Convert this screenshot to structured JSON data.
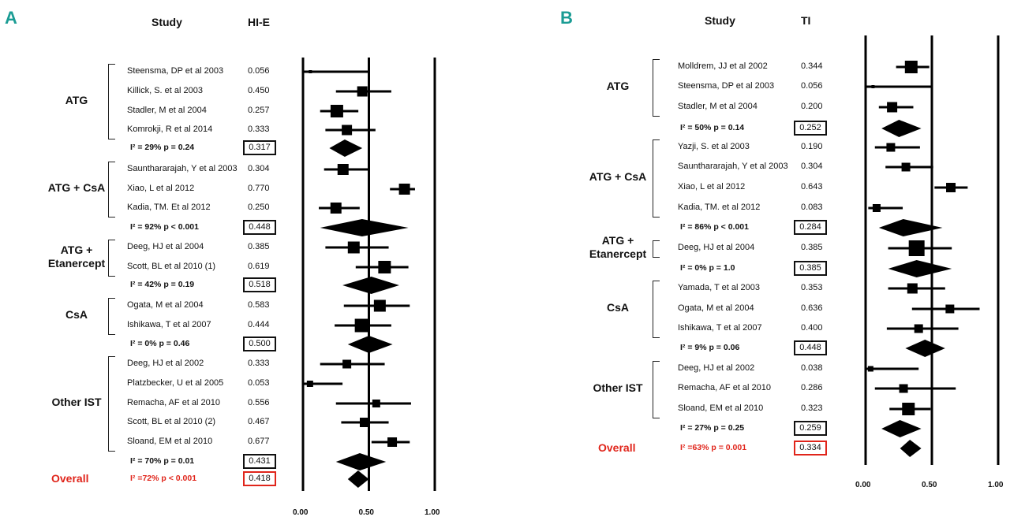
{
  "panels": [
    {
      "letter": "A",
      "study_header": "Study",
      "value_header": "HI-E",
      "axis": {
        "min": 0,
        "max": 1,
        "ticks": [
          "0.00",
          "0.50",
          "1.00"
        ]
      },
      "groups": [
        {
          "name": "ATG",
          "studies": [
            {
              "study": "Steensma, DP et al 2003",
              "value": "0.056",
              "est": 0.056,
              "lo": 0.0,
              "hi": 0.5,
              "w": 4
            },
            {
              "study": "Killick, S. et al 2003",
              "value": "0.450",
              "est": 0.45,
              "lo": 0.25,
              "hi": 0.67,
              "w": 13
            },
            {
              "study": "Stadler, M et al 2004",
              "value": "0.257",
              "est": 0.257,
              "lo": 0.13,
              "hi": 0.42,
              "w": 16
            },
            {
              "study": "Komrokji, R et al 2014",
              "value": "0.333",
              "est": 0.333,
              "lo": 0.17,
              "hi": 0.55,
              "w": 13
            }
          ],
          "heterogeneity": "I² = 29%   p = 0.24",
          "pooled": "0.317",
          "pooled_est": 0.317,
          "pooled_lo": 0.2,
          "pooled_hi": 0.45
        },
        {
          "name": "ATG + CsA",
          "studies": [
            {
              "study": "Saunthararajah, Y et al 2003",
              "value": "0.304",
              "est": 0.304,
              "lo": 0.16,
              "hi": 0.5,
              "w": 14
            },
            {
              "study": "Xiao, L et al 2012",
              "value": "0.770",
              "est": 0.77,
              "lo": 0.66,
              "hi": 0.85,
              "w": 14
            },
            {
              "study": "Kadia, TM. Et al 2012",
              "value": "0.250",
              "est": 0.25,
              "lo": 0.12,
              "hi": 0.43,
              "w": 14
            }
          ],
          "heterogeneity": "I² = 92%   p < 0.001",
          "pooled": "0.448",
          "pooled_est": 0.448,
          "pooled_lo": 0.13,
          "pooled_hi": 0.8
        },
        {
          "name": "ATG + Etanercept",
          "studies": [
            {
              "study": "Deeg, HJ et al 2004",
              "value": "0.385",
              "est": 0.385,
              "lo": 0.17,
              "hi": 0.65,
              "w": 15
            },
            {
              "study": "Scott, BL et al 2010 (1)",
              "value": "0.619",
              "est": 0.619,
              "lo": 0.4,
              "hi": 0.8,
              "w": 16
            }
          ],
          "heterogeneity": "I² = 42%   p = 0.19",
          "pooled": "0.518",
          "pooled_est": 0.518,
          "pooled_lo": 0.3,
          "pooled_hi": 0.73
        },
        {
          "name": "CsA",
          "studies": [
            {
              "study": "Ogata, M et al 2004",
              "value": "0.583",
              "est": 0.583,
              "lo": 0.31,
              "hi": 0.81,
              "w": 15
            },
            {
              "study": "Ishikawa, T et al 2007",
              "value": "0.444",
              "est": 0.444,
              "lo": 0.24,
              "hi": 0.67,
              "w": 17
            }
          ],
          "heterogeneity": "I² = 0%   p = 0.46",
          "pooled": "0.500",
          "pooled_est": 0.5,
          "pooled_lo": 0.34,
          "pooled_hi": 0.68
        },
        {
          "name": "Other IST",
          "studies": [
            {
              "study": "Deeg, HJ et al 2002",
              "value": "0.333",
              "est": 0.333,
              "lo": 0.13,
              "hi": 0.62,
              "w": 11
            },
            {
              "study": "Platzbecker, U et al 2005",
              "value": "0.053",
              "est": 0.053,
              "lo": 0.0,
              "hi": 0.3,
              "w": 8
            },
            {
              "study": "Remacha, AF et al 2010",
              "value": "0.556",
              "est": 0.556,
              "lo": 0.25,
              "hi": 0.82,
              "w": 10
            },
            {
              "study": "Scott, BL et al 2010 (2)",
              "value": "0.467",
              "est": 0.467,
              "lo": 0.29,
              "hi": 0.65,
              "w": 12
            },
            {
              "study": "Sloand, EM et al 2010",
              "value": "0.677",
              "est": 0.677,
              "lo": 0.52,
              "hi": 0.81,
              "w": 12
            }
          ],
          "heterogeneity": "I² = 70%   p = 0.01",
          "pooled": "0.431",
          "pooled_est": 0.431,
          "pooled_lo": 0.25,
          "pooled_hi": 0.63
        }
      ],
      "overall": {
        "label": "Overall",
        "heterogeneity": "I² =72%   p < 0.001",
        "value": "0.418",
        "est": 0.418,
        "lo": 0.34,
        "hi": 0.5
      }
    },
    {
      "letter": "B",
      "study_header": "Study",
      "value_header": "TI",
      "axis": {
        "min": 0,
        "max": 1,
        "ticks": [
          "0.00",
          "0.50",
          "1.00"
        ]
      },
      "groups": [
        {
          "name": "ATG",
          "studies": [
            {
              "study": "Molldrem, JJ et al 2002",
              "value": "0.344",
              "est": 0.344,
              "lo": 0.23,
              "hi": 0.48,
              "w": 16
            },
            {
              "study": "Steensma, DP et al 2003",
              "value": "0.056",
              "est": 0.056,
              "lo": 0.0,
              "hi": 0.5,
              "w": 4
            },
            {
              "study": "Stadler, M et al 2004",
              "value": "0.200",
              "est": 0.2,
              "lo": 0.1,
              "hi": 0.36,
              "w": 13
            }
          ],
          "heterogeneity": "I² = 50%   p = 0.14",
          "pooled": "0.252",
          "pooled_est": 0.252,
          "pooled_lo": 0.12,
          "pooled_hi": 0.42
        },
        {
          "name": "ATG + CsA",
          "studies": [
            {
              "study": "Yazji, S. et al 2003",
              "value": "0.190",
              "est": 0.19,
              "lo": 0.07,
              "hi": 0.41,
              "w": 11
            },
            {
              "study": "Saunthararajah, Y et al 2003",
              "value": "0.304",
              "est": 0.304,
              "lo": 0.15,
              "hi": 0.51,
              "w": 11
            },
            {
              "study": "Xiao, L et al 2012",
              "value": "0.643",
              "est": 0.643,
              "lo": 0.52,
              "hi": 0.77,
              "w": 12
            },
            {
              "study": "Kadia, TM. et al 2012",
              "value": "0.083",
              "est": 0.083,
              "lo": 0.02,
              "hi": 0.28,
              "w": 10
            }
          ],
          "heterogeneity": "I² = 86%   p < 0.001",
          "pooled": "0.284",
          "pooled_est": 0.284,
          "pooled_lo": 0.1,
          "pooled_hi": 0.58
        },
        {
          "name": "ATG + Etanercept",
          "studies": [
            {
              "study": "Deeg, HJ et al 2004",
              "value": "0.385",
              "est": 0.385,
              "lo": 0.17,
              "hi": 0.65,
              "w": 20
            }
          ],
          "heterogeneity": "I² = 0%   p = 1.0",
          "pooled": "0.385",
          "pooled_est": 0.385,
          "pooled_lo": 0.17,
          "pooled_hi": 0.65
        },
        {
          "name": "CsA",
          "studies": [
            {
              "study": "Yamada, T et al 2003",
              "value": "0.353",
              "est": 0.353,
              "lo": 0.17,
              "hi": 0.6,
              "w": 13
            },
            {
              "study": "Ogata, M et al 2004",
              "value": "0.636",
              "est": 0.636,
              "lo": 0.35,
              "hi": 0.86,
              "w": 11
            },
            {
              "study": "Ishikawa, T et al 2007",
              "value": "0.400",
              "est": 0.4,
              "lo": 0.16,
              "hi": 0.7,
              "w": 11
            }
          ],
          "heterogeneity": "I² = 9%   p = 0.06",
          "pooled": "0.448",
          "pooled_est": 0.448,
          "pooled_lo": 0.3,
          "pooled_hi": 0.6
        },
        {
          "name": "Other IST",
          "studies": [
            {
              "study": "Deeg, HJ et al 2002",
              "value": "0.038",
              "est": 0.038,
              "lo": 0.0,
              "hi": 0.4,
              "w": 7
            },
            {
              "study": "Remacha, AF et al 2010",
              "value": "0.286",
              "est": 0.286,
              "lo": 0.07,
              "hi": 0.68,
              "w": 11
            },
            {
              "study": "Sloand, EM et al 2010",
              "value": "0.323",
              "est": 0.323,
              "lo": 0.18,
              "hi": 0.49,
              "w": 16
            }
          ],
          "heterogeneity": "I² = 27%   p = 0.25",
          "pooled": "0.259",
          "pooled_est": 0.259,
          "pooled_lo": 0.12,
          "pooled_hi": 0.42
        }
      ],
      "overall": {
        "label": "Overall",
        "heterogeneity": "I² =63%   p = 0.001",
        "value": "0.334",
        "est": 0.334,
        "lo": 0.26,
        "hi": 0.42
      }
    }
  ],
  "chart_data": [
    {
      "type": "forest",
      "title": "A",
      "metric": "HI-E",
      "xlim": [
        0,
        1
      ],
      "xticks": [
        0.0,
        0.5,
        1.0
      ],
      "subgroups": [
        {
          "name": "ATG",
          "estimates": [
            0.056,
            0.45,
            0.257,
            0.333
          ],
          "pooled": 0.317
        },
        {
          "name": "ATG + CsA",
          "estimates": [
            0.304,
            0.77,
            0.25
          ],
          "pooled": 0.448
        },
        {
          "name": "ATG + Etanercept",
          "estimates": [
            0.385,
            0.619
          ],
          "pooled": 0.518
        },
        {
          "name": "CsA",
          "estimates": [
            0.583,
            0.444
          ],
          "pooled": 0.5
        },
        {
          "name": "Other IST",
          "estimates": [
            0.333,
            0.053,
            0.556,
            0.467,
            0.677
          ],
          "pooled": 0.431
        }
      ],
      "overall": 0.418
    },
    {
      "type": "forest",
      "title": "B",
      "metric": "TI",
      "xlim": [
        0,
        1
      ],
      "xticks": [
        0.0,
        0.5,
        1.0
      ],
      "subgroups": [
        {
          "name": "ATG",
          "estimates": [
            0.344,
            0.056,
            0.2
          ],
          "pooled": 0.252
        },
        {
          "name": "ATG + CsA",
          "estimates": [
            0.19,
            0.304,
            0.643,
            0.083
          ],
          "pooled": 0.284
        },
        {
          "name": "ATG + Etanercept",
          "estimates": [
            0.385
          ],
          "pooled": 0.385
        },
        {
          "name": "CsA",
          "estimates": [
            0.353,
            0.636,
            0.4
          ],
          "pooled": 0.448
        },
        {
          "name": "Other IST",
          "estimates": [
            0.038,
            0.286,
            0.323
          ],
          "pooled": 0.259
        }
      ],
      "overall": 0.334
    }
  ]
}
